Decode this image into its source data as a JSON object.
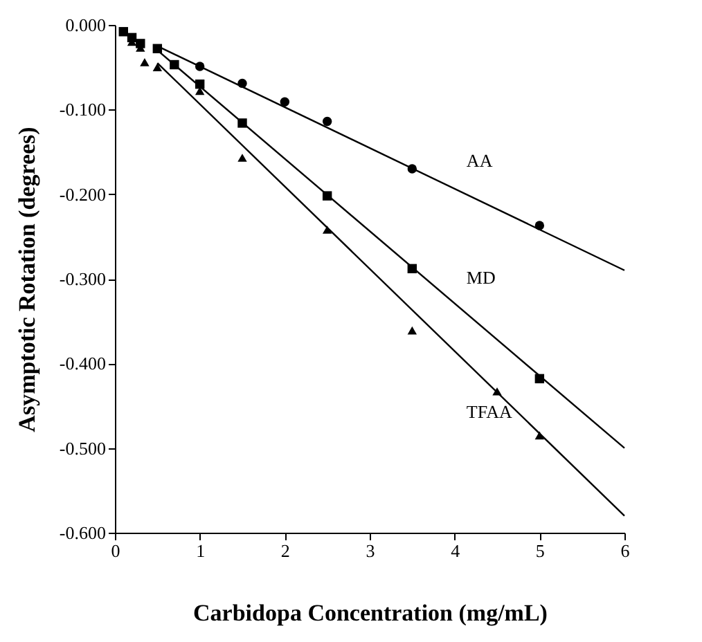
{
  "chart_data": {
    "type": "scatter",
    "xlabel": "Carbidopa Concentration (mg/mL)",
    "ylabel": "Asymptotic Rotation (degrees)",
    "xlim": [
      0,
      6
    ],
    "ylim": [
      -0.6,
      0
    ],
    "xticks": [
      0,
      1,
      2,
      3,
      4,
      5,
      6
    ],
    "yticks": [
      {
        "value": 0,
        "label": "0.000"
      },
      {
        "value": -0.1,
        "label": "-0.100"
      },
      {
        "value": -0.2,
        "label": "-0.200"
      },
      {
        "value": -0.3,
        "label": "-0.300"
      },
      {
        "value": -0.4,
        "label": "-0.400"
      },
      {
        "value": -0.5,
        "label": "-0.500"
      },
      {
        "value": -0.6,
        "label": "-0.600"
      }
    ],
    "grid": false,
    "series": [
      {
        "marker": "circle",
        "color": "#000000",
        "x": [
          1,
          1.5,
          2,
          2.5,
          3.5,
          5
        ],
        "values": [
          -0.049,
          -0.069,
          -0.091,
          -0.114,
          -0.17,
          -0.237
        ]
      },
      {
        "marker": "square",
        "color": "#000000",
        "x": [
          0.1,
          0.2,
          0.3,
          0.5,
          0.7,
          1,
          1.5,
          2.5,
          3.5,
          5
        ],
        "values": [
          -0.008,
          -0.015,
          -0.022,
          -0.028,
          -0.047,
          -0.07,
          -0.116,
          -0.202,
          -0.288,
          -0.418
        ]
      },
      {
        "marker": "triangle",
        "color": "#000000",
        "x": [
          0.2,
          0.3,
          0.35,
          0.5,
          1,
          1.5,
          2.5,
          3.5,
          4.5,
          5
        ],
        "values": [
          -0.02,
          -0.027,
          -0.044,
          -0.05,
          -0.078,
          -0.157,
          -0.242,
          -0.361,
          -0.433,
          -0.485
        ]
      },
      {
        "type": "line",
        "name": "AA",
        "marker": "none",
        "color": "#000000",
        "x": [
          0.5,
          6
        ],
        "values": [
          -0.025,
          -0.29
        ]
      },
      {
        "type": "line",
        "name": "MD",
        "marker": "none",
        "color": "#000000",
        "x": [
          0.5,
          6
        ],
        "values": [
          -0.03,
          -0.5
        ]
      },
      {
        "type": "line",
        "name": "TFAA",
        "marker": "none",
        "color": "#000000",
        "x": [
          0.5,
          6
        ],
        "values": [
          -0.045,
          -0.58
        ]
      }
    ]
  }
}
